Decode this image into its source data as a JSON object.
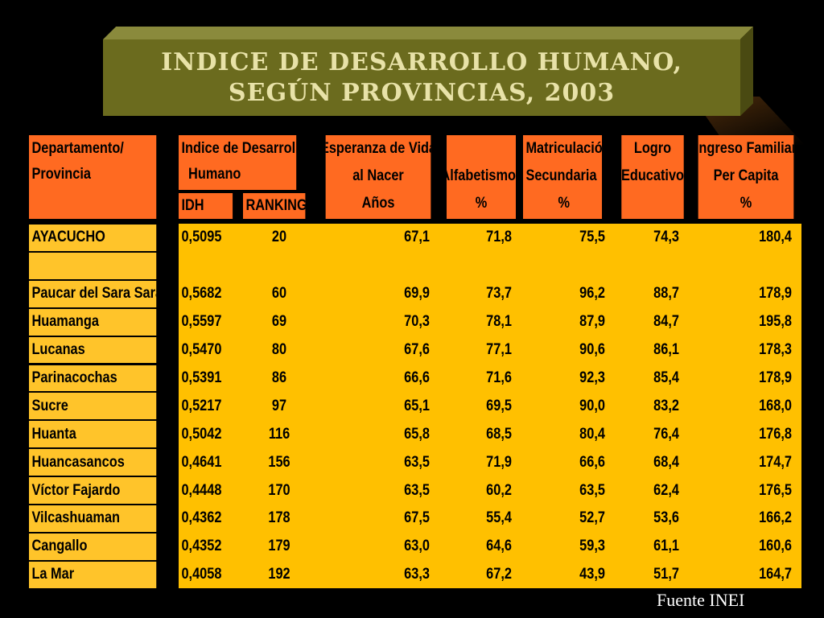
{
  "title": {
    "line1": "INDICE DE DESARROLLO HUMANO,",
    "line2": "SEGÚN PROVINCIAS, 2003"
  },
  "headers": {
    "dept_line1": "Departamento/",
    "dept_line2": "Provincia",
    "idh_group_line1": "Indice de Desarrollo",
    "idh_group_line2": "Humano",
    "idh": "IDH",
    "ranking": "RANKING",
    "esperanza_line1": "Esperanza de Vida",
    "esperanza_line2": "al Nacer",
    "esperanza_unit": "Años",
    "alfabetismo": "Alfabetismo",
    "alfabetismo_unit": "%",
    "matriculacion_line1": "Matriculación",
    "matriculacion_line2": "Secundaria",
    "matriculacion_unit": "%",
    "logro_line1": "Logro",
    "logro_line2": "Educativo",
    "ingreso_line1": "Ingreso Familiar",
    "ingreso_line2": "Per Capita",
    "ingreso_unit": "%"
  },
  "rows": [
    {
      "name": "AYACUCHO",
      "idh": "0,5095",
      "ranking": "20",
      "esperanza": "67,1",
      "alfabetismo": "71,8",
      "matriculacion": "75,5",
      "logro": "74,3",
      "ingreso": "180,4"
    },
    {
      "name": "",
      "idh": "",
      "ranking": "",
      "esperanza": "",
      "alfabetismo": "",
      "matriculacion": "",
      "logro": "",
      "ingreso": ""
    },
    {
      "name": "Paucar del Sara Sara",
      "idh": "0,5682",
      "ranking": "60",
      "esperanza": "69,9",
      "alfabetismo": "73,7",
      "matriculacion": "96,2",
      "logro": "88,7",
      "ingreso": "178,9"
    },
    {
      "name": "Huamanga",
      "idh": "0,5597",
      "ranking": "69",
      "esperanza": "70,3",
      "alfabetismo": "78,1",
      "matriculacion": "87,9",
      "logro": "84,7",
      "ingreso": "195,8"
    },
    {
      "name": "Lucanas",
      "idh": "0,5470",
      "ranking": "80",
      "esperanza": "67,6",
      "alfabetismo": "77,1",
      "matriculacion": "90,6",
      "logro": "86,1",
      "ingreso": "178,3"
    },
    {
      "name": "Parinacochas",
      "idh": "0,5391",
      "ranking": "86",
      "esperanza": "66,6",
      "alfabetismo": "71,6",
      "matriculacion": "92,3",
      "logro": "85,4",
      "ingreso": "178,9"
    },
    {
      "name": "Sucre",
      "idh": "0,5217",
      "ranking": "97",
      "esperanza": "65,1",
      "alfabetismo": "69,5",
      "matriculacion": "90,0",
      "logro": "83,2",
      "ingreso": "168,0"
    },
    {
      "name": "Huanta",
      "idh": "0,5042",
      "ranking": "116",
      "esperanza": "65,8",
      "alfabetismo": "68,5",
      "matriculacion": "80,4",
      "logro": "76,4",
      "ingreso": "176,8"
    },
    {
      "name": "Huancasancos",
      "idh": "0,4641",
      "ranking": "156",
      "esperanza": "63,5",
      "alfabetismo": "71,9",
      "matriculacion": "66,6",
      "logro": "68,4",
      "ingreso": "174,7"
    },
    {
      "name": "Víctor Fajardo",
      "idh": "0,4448",
      "ranking": "170",
      "esperanza": "63,5",
      "alfabetismo": "60,2",
      "matriculacion": "63,5",
      "logro": "62,4",
      "ingreso": "176,5"
    },
    {
      "name": "Vilcashuaman",
      "idh": "0,4362",
      "ranking": "178",
      "esperanza": "67,5",
      "alfabetismo": "55,4",
      "matriculacion": "52,7",
      "logro": "53,6",
      "ingreso": "166,2"
    },
    {
      "name": "Cangallo",
      "idh": "0,4352",
      "ranking": "179",
      "esperanza": "63,0",
      "alfabetismo": "64,6",
      "matriculacion": "59,3",
      "logro": "61,1",
      "ingreso": "160,6"
    },
    {
      "name": "La Mar",
      "idh": "0,4058",
      "ranking": "192",
      "esperanza": "63,3",
      "alfabetismo": "67,2",
      "matriculacion": "43,9",
      "logro": "51,7",
      "ingreso": "164,7"
    }
  ],
  "footer": "Fuente INEI",
  "colors": {
    "header_bg": "#ff6a21",
    "label_bg": "#ffc42a",
    "data_bg": "#ffc000",
    "title_bg": "#6b6b1e",
    "title_text": "#e8e2a8"
  }
}
